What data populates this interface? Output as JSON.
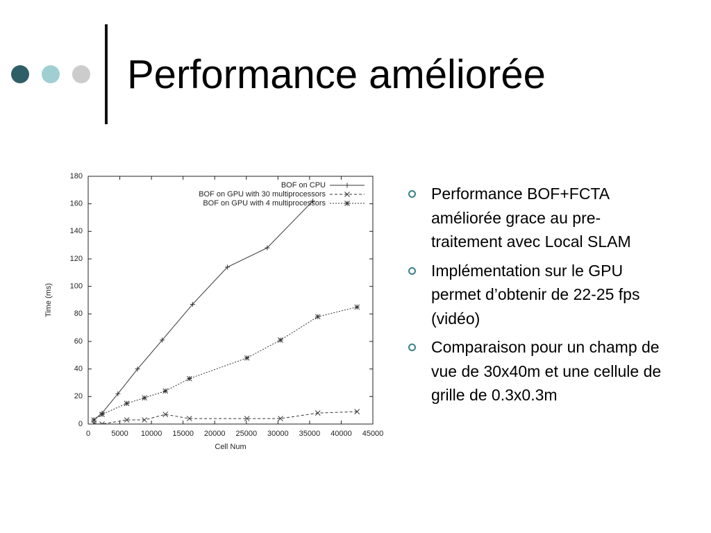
{
  "header": {
    "title": "Performance améliorée"
  },
  "chart_data": {
    "type": "line",
    "xlabel": "Cell Num",
    "ylabel": "Time (ms)",
    "xlim": [
      0,
      45000
    ],
    "xticks": [
      0,
      5000,
      10000,
      15000,
      20000,
      25000,
      30000,
      35000,
      40000,
      45000
    ],
    "ylim": [
      0,
      180
    ],
    "yticks": [
      0,
      20,
      40,
      60,
      80,
      100,
      120,
      140,
      160,
      180
    ],
    "legend": "upper right",
    "series": [
      {
        "name": "BOF on CPU",
        "color": "#333333",
        "line_style": "solid",
        "marker": "+",
        "x": [
          900,
          2200,
          4700,
          7800,
          11700,
          16500,
          22000,
          28300,
          35500
        ],
        "values": [
          3,
          8,
          22,
          40,
          61,
          87,
          114,
          128,
          162
        ]
      },
      {
        "name": "BOF on GPU with 30 multiprocessors",
        "color": "#333333",
        "line_style": "dashed",
        "marker": "x",
        "x": [
          900,
          2200,
          6100,
          8900,
          12200,
          16000,
          25100,
          30400,
          36300,
          42500
        ],
        "values": [
          0.5,
          0,
          3,
          3,
          7,
          4,
          4,
          4,
          8,
          9
        ]
      },
      {
        "name": "BOF on GPU with 4 multiprocessors",
        "color": "#333333",
        "line_style": "dotted",
        "marker": "*",
        "x": [
          900,
          2200,
          6100,
          8900,
          12200,
          16000,
          25100,
          30400,
          36300,
          42500
        ],
        "values": [
          3,
          7,
          15,
          19,
          24,
          33,
          48,
          61,
          78,
          85
        ]
      }
    ]
  },
  "bullets": [
    "Performance BOF+FCTA améliorée grace au pre-traitement avec Local SLAM",
    "Implémentation sur le GPU permet d’obtenir de 22-25 fps (vidéo)",
    "Comparaison pour un champ de vue de 30x40m et une cellule de grille de 0.3x0.3m"
  ]
}
